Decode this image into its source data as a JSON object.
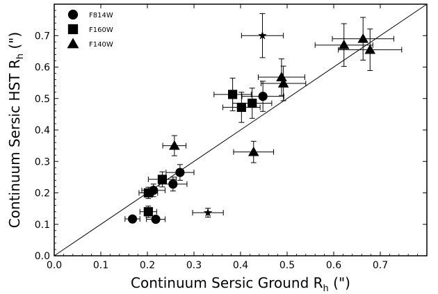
{
  "chart_data": {
    "type": "scatter",
    "title": "",
    "xlabel": "Continuum Sersic Ground R",
    "xlabel_sub": "h",
    "xlabel_unit": " (\")",
    "ylabel": "Continuum Sersic HST R",
    "ylabel_sub": "h",
    "ylabel_unit": " (\")",
    "xlim": [
      0.0,
      0.8
    ],
    "ylim": [
      0.0,
      0.8
    ],
    "xticks": [
      0.0,
      0.1,
      0.2,
      0.3,
      0.4,
      0.5,
      0.6,
      0.7
    ],
    "yticks": [
      0.0,
      0.1,
      0.2,
      0.3,
      0.4,
      0.5,
      0.6,
      0.7
    ],
    "xtick_labels": [
      "0.0",
      "0.1",
      "0.2",
      "0.3",
      "0.4",
      "0.5",
      "0.6",
      "0.7"
    ],
    "ytick_labels": [
      "0.0",
      "0.1",
      "0.2",
      "0.3",
      "0.4",
      "0.5",
      "0.6",
      "0.7"
    ],
    "one_to_one_line": true,
    "grid": false,
    "legend_position": "top-left",
    "marker_color": "#000000",
    "series": [
      {
        "name": "F814W",
        "marker": "circle",
        "points": [
          {
            "x": 0.168,
            "y": 0.117,
            "xerr": 0.016,
            "yerr": 0.0
          },
          {
            "x": 0.218,
            "y": 0.116,
            "xerr": 0.02,
            "yerr": 0.0
          },
          {
            "x": 0.213,
            "y": 0.208,
            "xerr": 0.025,
            "yerr": 0.02
          },
          {
            "x": 0.255,
            "y": 0.228,
            "xerr": 0.03,
            "yerr": 0.022
          },
          {
            "x": 0.27,
            "y": 0.265,
            "xerr": 0.03,
            "yerr": 0.025
          },
          {
            "x": 0.448,
            "y": 0.507,
            "xerr": 0.045,
            "yerr": 0.048
          }
        ]
      },
      {
        "name": "F160W",
        "marker": "square",
        "points": [
          {
            "x": 0.202,
            "y": 0.14,
            "xerr": 0.018,
            "yerr": 0.018
          },
          {
            "x": 0.202,
            "y": 0.2,
            "xerr": 0.02,
            "yerr": 0.018
          },
          {
            "x": 0.232,
            "y": 0.243,
            "xerr": 0.03,
            "yerr": 0.024
          },
          {
            "x": 0.383,
            "y": 0.513,
            "xerr": 0.04,
            "yerr": 0.052
          },
          {
            "x": 0.402,
            "y": 0.472,
            "xerr": 0.04,
            "yerr": 0.048
          },
          {
            "x": 0.425,
            "y": 0.485,
            "xerr": 0.042,
            "yerr": 0.048
          }
        ]
      },
      {
        "name": "F140W",
        "marker": "triangle",
        "points": [
          {
            "x": 0.258,
            "y": 0.35,
            "xerr": 0.025,
            "yerr": 0.032
          },
          {
            "x": 0.428,
            "y": 0.33,
            "xerr": 0.043,
            "yerr": 0.034
          },
          {
            "x": 0.488,
            "y": 0.568,
            "xerr": 0.05,
            "yerr": 0.058
          },
          {
            "x": 0.492,
            "y": 0.548,
            "xerr": 0.048,
            "yerr": 0.055
          },
          {
            "x": 0.622,
            "y": 0.67,
            "xerr": 0.062,
            "yerr": 0.068
          },
          {
            "x": 0.663,
            "y": 0.69,
            "xerr": 0.066,
            "yerr": 0.068
          },
          {
            "x": 0.678,
            "y": 0.655,
            "xerr": 0.068,
            "yerr": 0.066
          }
        ]
      },
      {
        "name": "",
        "marker": "star",
        "points": [
          {
            "x": 0.447,
            "y": 0.7,
            "xerr": 0.045,
            "yerr": 0.07
          },
          {
            "x": 0.33,
            "y": 0.137,
            "xerr": 0.033,
            "yerr": 0.014
          }
        ]
      }
    ]
  }
}
